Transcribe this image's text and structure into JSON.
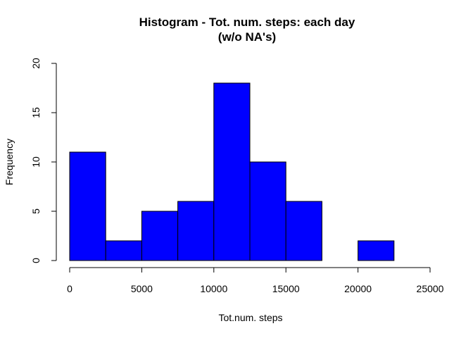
{
  "chart_data": {
    "type": "bar",
    "title": "Histogram - Tot. num. steps: each day",
    "subtitle": "(w/o NA's)",
    "xlabel": "Tot.num. steps",
    "ylabel": "Frequency",
    "bins": [
      {
        "start": 0,
        "end": 2500,
        "value": 11
      },
      {
        "start": 2500,
        "end": 5000,
        "value": 2
      },
      {
        "start": 5000,
        "end": 7500,
        "value": 5
      },
      {
        "start": 7500,
        "end": 10000,
        "value": 6
      },
      {
        "start": 10000,
        "end": 12500,
        "value": 18
      },
      {
        "start": 12500,
        "end": 15000,
        "value": 10
      },
      {
        "start": 15000,
        "end": 17500,
        "value": 6
      },
      {
        "start": 17500,
        "end": 20000,
        "value": 0
      },
      {
        "start": 20000,
        "end": 22500,
        "value": 2
      }
    ],
    "xlim": [
      0,
      25000
    ],
    "ylim": [
      0,
      20
    ],
    "xticks": [
      0,
      5000,
      10000,
      15000,
      20000,
      25000
    ],
    "yticks": [
      0,
      5,
      10,
      15,
      20
    ],
    "bar_color": "#0000ff",
    "bar_border": "#000000",
    "grid": false,
    "legend": "none"
  }
}
